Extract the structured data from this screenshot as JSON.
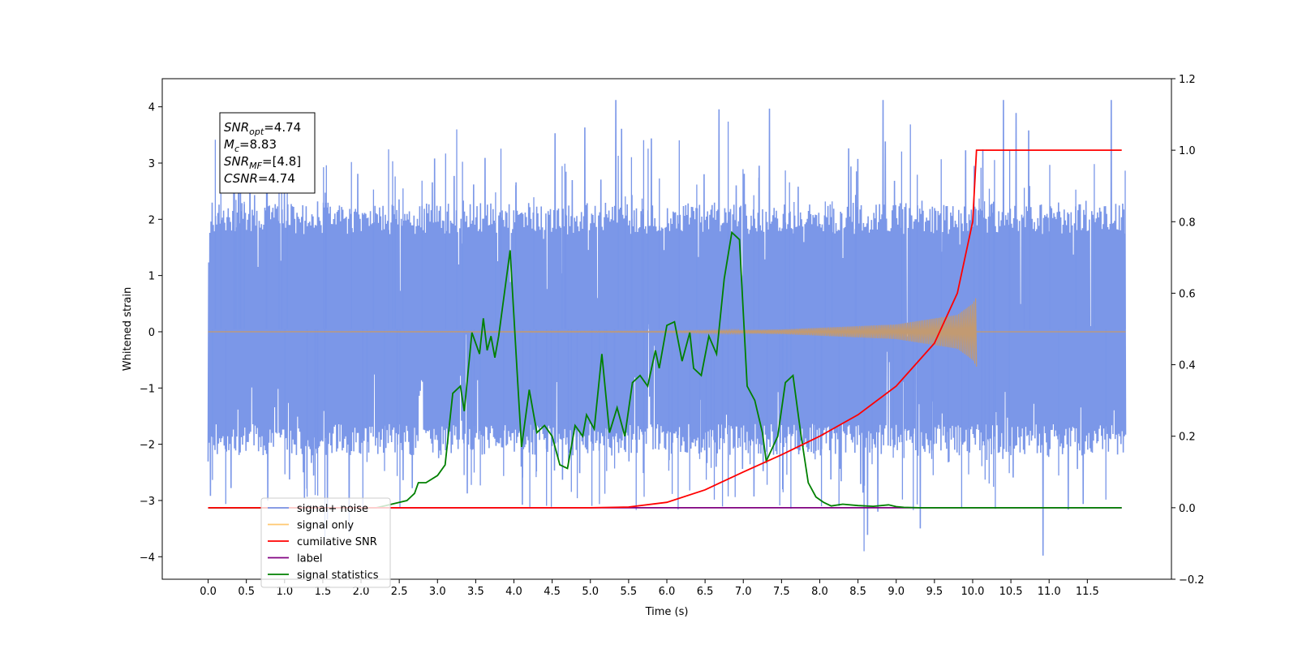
{
  "chart_data": {
    "type": "line",
    "xlabel": "Time (s)",
    "ylabel": "Whitened strain",
    "xlim": [
      -0.6,
      12.6
    ],
    "ylim": [
      -4.4,
      4.5
    ],
    "y2lim": [
      -0.2,
      1.2
    ],
    "xticks": [
      0.0,
      0.5,
      1.0,
      1.5,
      2.0,
      2.5,
      3.0,
      3.5,
      4.0,
      4.5,
      5.0,
      5.5,
      6.0,
      6.5,
      7.0,
      7.5,
      8.0,
      8.5,
      9.0,
      9.5,
      10.0,
      10.5,
      11.0,
      11.5
    ],
    "xtick_labels": [
      "0.0",
      "0.5",
      "1.0",
      "1.5",
      "2.0",
      "2.5",
      "3.0",
      "3.5",
      "4.0",
      "4.5",
      "5.0",
      "5.5",
      "6.0",
      "6.5",
      "7.0",
      "7.5",
      "8.0",
      "8.5",
      "9.0",
      "9.5",
      "10.0",
      "10.5",
      "11.0",
      "11.5"
    ],
    "yticks": [
      -4,
      -3,
      -2,
      -1,
      0,
      1,
      2,
      3,
      4
    ],
    "ytick_labels": [
      "−4",
      "−3",
      "−2",
      "−1",
      "0",
      "1",
      "2",
      "3",
      "4"
    ],
    "y2ticks": [
      -0.2,
      0.0,
      0.2,
      0.4,
      0.6,
      0.8,
      1.0,
      1.2
    ],
    "y2tick_labels": [
      "−0.2",
      "0.0",
      "0.2",
      "0.4",
      "0.6",
      "0.8",
      "1.0",
      "1.2"
    ],
    "grid": false,
    "legend_position": "bottom-left",
    "annotation": [
      "SNR_opt=4.74",
      "M_c=8.83",
      "SNR_MF=[4.8]",
      "CSNR=4.74"
    ],
    "series": [
      {
        "name": "signal+ noise",
        "axis": "left",
        "color": "#7895e8",
        "noise": {
          "t_start": 0.0,
          "t_end": 12.0,
          "typical_range": [
            -2.2,
            2.3
          ],
          "max": 4.12,
          "min": -3.98
        }
      },
      {
        "name": "signal only",
        "axis": "left",
        "color": "#c29a72",
        "legend_color": "#ffc870",
        "chirp": {
          "t_start": 0.0,
          "t_merger": 10.05,
          "peak_amplitude": 0.62,
          "amplitude_at_t": [
            [
              0.0,
              0.0
            ],
            [
              6.0,
              0.01
            ],
            [
              7.5,
              0.04
            ],
            [
              9.0,
              0.13
            ],
            [
              9.8,
              0.3
            ],
            [
              10.0,
              0.5
            ],
            [
              10.05,
              0.62
            ]
          ]
        }
      },
      {
        "name": "cumilative SNR",
        "axis": "right",
        "color": "#ff0000",
        "x": [
          0.0,
          5.0,
          5.5,
          6.0,
          6.5,
          7.0,
          7.5,
          8.0,
          8.5,
          9.0,
          9.5,
          9.8,
          10.0,
          10.05,
          11.95
        ],
        "y": [
          0.0,
          0.0,
          0.002,
          0.015,
          0.05,
          0.1,
          0.148,
          0.2,
          0.26,
          0.34,
          0.46,
          0.6,
          0.8,
          1.0,
          1.0
        ]
      },
      {
        "name": "label",
        "axis": "right",
        "color": "#800080",
        "x": [
          0.0,
          11.95
        ],
        "y": [
          0.0,
          0.0
        ]
      },
      {
        "name": "signal statistics",
        "axis": "right",
        "color": "#008000",
        "x": [
          0.0,
          2.2,
          2.3,
          2.5,
          2.6,
          2.7,
          2.75,
          2.85,
          3.0,
          3.1,
          3.2,
          3.3,
          3.35,
          3.45,
          3.55,
          3.6,
          3.65,
          3.7,
          3.75,
          3.8,
          3.85,
          3.95,
          4.05,
          4.1,
          4.2,
          4.3,
          4.4,
          4.5,
          4.6,
          4.7,
          4.8,
          4.9,
          4.95,
          5.05,
          5.15,
          5.25,
          5.35,
          5.45,
          5.55,
          5.65,
          5.75,
          5.85,
          5.9,
          6.0,
          6.1,
          6.2,
          6.3,
          6.35,
          6.45,
          6.55,
          6.65,
          6.75,
          6.85,
          6.95,
          7.05,
          7.15,
          7.25,
          7.3,
          7.45,
          7.55,
          7.65,
          7.75,
          7.85,
          7.95,
          8.05,
          8.15,
          8.3,
          8.5,
          8.7,
          8.9,
          9.0,
          9.1,
          9.3,
          9.5,
          11.95
        ],
        "y": [
          0.0,
          0.0,
          0.005,
          0.015,
          0.02,
          0.04,
          0.07,
          0.07,
          0.09,
          0.12,
          0.32,
          0.34,
          0.27,
          0.49,
          0.43,
          0.53,
          0.44,
          0.48,
          0.42,
          0.48,
          0.56,
          0.72,
          0.35,
          0.17,
          0.33,
          0.21,
          0.23,
          0.2,
          0.12,
          0.11,
          0.23,
          0.2,
          0.26,
          0.22,
          0.43,
          0.21,
          0.28,
          0.2,
          0.35,
          0.37,
          0.34,
          0.44,
          0.39,
          0.51,
          0.52,
          0.41,
          0.49,
          0.39,
          0.37,
          0.48,
          0.43,
          0.64,
          0.77,
          0.75,
          0.34,
          0.3,
          0.21,
          0.13,
          0.2,
          0.35,
          0.37,
          0.21,
          0.07,
          0.03,
          0.015,
          0.005,
          0.01,
          0.006,
          0.004,
          0.008,
          0.003,
          0.001,
          0.0,
          0.0,
          0.0
        ]
      }
    ]
  }
}
